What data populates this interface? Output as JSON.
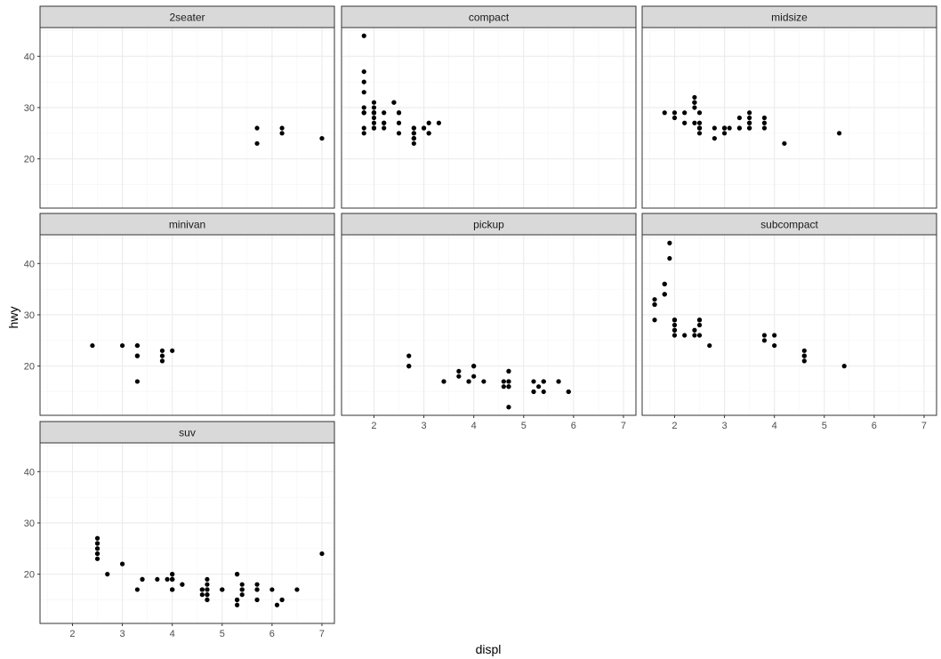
{
  "chart_data": {
    "type": "scatter",
    "layout": "facet_wrap",
    "xlabel": "displ",
    "ylabel": "hwy",
    "xlim": [
      1.35,
      7.25
    ],
    "ylim": [
      10.4,
      45.6
    ],
    "xticks": [
      2,
      3,
      4,
      5,
      6,
      7
    ],
    "yticks": [
      20,
      30,
      40
    ],
    "grid": true,
    "colors": {
      "strip_fill": "#d9d9d9",
      "strip_border": "#333333",
      "grid_major": "#ebebeb",
      "grid_minor": "#f5f5f5",
      "point": "#000000"
    },
    "facets": [
      {
        "name": "2seater",
        "points": [
          [
            5.7,
            26
          ],
          [
            5.7,
            23
          ],
          [
            6.2,
            26
          ],
          [
            6.2,
            25
          ],
          [
            7.0,
            24
          ]
        ]
      },
      {
        "name": "compact",
        "points": [
          [
            1.8,
            29
          ],
          [
            1.8,
            29
          ],
          [
            2.0,
            31
          ],
          [
            2.0,
            30
          ],
          [
            2.8,
            26
          ],
          [
            2.8,
            26
          ],
          [
            3.1,
            27
          ],
          [
            1.8,
            26
          ],
          [
            1.8,
            25
          ],
          [
            2.0,
            28
          ],
          [
            2.0,
            29
          ],
          [
            2.8,
            25
          ],
          [
            2.8,
            25
          ],
          [
            3.1,
            25
          ],
          [
            3.1,
            25
          ],
          [
            2.2,
            27
          ],
          [
            2.2,
            29
          ],
          [
            2.4,
            31
          ],
          [
            2.4,
            31
          ],
          [
            3.0,
            26
          ],
          [
            3.0,
            26
          ],
          [
            3.3,
            27
          ],
          [
            1.8,
            37
          ],
          [
            1.8,
            35
          ],
          [
            1.8,
            33
          ],
          [
            1.8,
            29
          ],
          [
            1.8,
            30
          ],
          [
            1.8,
            44
          ],
          [
            2.0,
            29
          ],
          [
            2.0,
            26
          ],
          [
            2.0,
            29
          ],
          [
            2.0,
            29
          ],
          [
            2.0,
            27
          ],
          [
            2.5,
            29
          ],
          [
            2.5,
            29
          ],
          [
            2.8,
            24
          ],
          [
            2.8,
            24
          ],
          [
            2.8,
            23
          ],
          [
            2.8,
            24
          ],
          [
            2.0,
            29
          ],
          [
            2.0,
            26
          ],
          [
            2.0,
            26
          ],
          [
            2.5,
            27
          ],
          [
            2.5,
            25
          ],
          [
            2.2,
            26
          ],
          [
            2.2,
            27
          ]
        ]
      },
      {
        "name": "midsize",
        "points": [
          [
            2.8,
            26
          ],
          [
            3.1,
            26
          ],
          [
            4.2,
            23
          ],
          [
            2.4,
            27
          ],
          [
            2.4,
            30
          ],
          [
            2.5,
            26
          ],
          [
            2.5,
            29
          ],
          [
            3.5,
            26
          ],
          [
            3.5,
            29
          ],
          [
            3.0,
            26
          ],
          [
            3.0,
            26
          ],
          [
            3.3,
            28
          ],
          [
            3.8,
            26
          ],
          [
            3.8,
            27
          ],
          [
            3.8,
            28
          ],
          [
            2.4,
            31
          ],
          [
            2.4,
            32
          ],
          [
            2.5,
            27
          ],
          [
            2.5,
            26
          ],
          [
            2.5,
            26
          ],
          [
            2.5,
            26
          ],
          [
            3.3,
            26
          ],
          [
            3.3,
            26
          ],
          [
            2.5,
            25
          ],
          [
            3.5,
            27
          ],
          [
            3.5,
            26
          ],
          [
            1.8,
            29
          ],
          [
            2.0,
            29
          ],
          [
            2.0,
            28
          ],
          [
            2.2,
            27
          ],
          [
            2.2,
            29
          ],
          [
            2.4,
            31
          ],
          [
            2.4,
            31
          ],
          [
            3.0,
            26
          ],
          [
            3.0,
            25
          ],
          [
            3.5,
            28
          ],
          [
            3.5,
            27
          ],
          [
            5.3,
            25
          ],
          [
            2.8,
            24
          ]
        ]
      },
      {
        "name": "minivan",
        "points": [
          [
            2.4,
            24
          ],
          [
            3.0,
            24
          ],
          [
            3.3,
            22
          ],
          [
            3.3,
            24
          ],
          [
            3.3,
            24
          ],
          [
            3.3,
            22
          ],
          [
            3.3,
            17
          ],
          [
            3.8,
            22
          ],
          [
            3.8,
            21
          ],
          [
            3.8,
            23
          ],
          [
            4.0,
            23
          ]
        ]
      },
      {
        "name": "pickup",
        "points": [
          [
            3.7,
            19
          ],
          [
            3.7,
            18
          ],
          [
            3.9,
            17
          ],
          [
            3.9,
            17
          ],
          [
            4.7,
            19
          ],
          [
            4.7,
            19
          ],
          [
            4.7,
            12
          ],
          [
            5.2,
            17
          ],
          [
            5.2,
            15
          ],
          [
            5.7,
            17
          ],
          [
            5.9,
            15
          ],
          [
            4.7,
            17
          ],
          [
            4.7,
            16
          ],
          [
            4.7,
            17
          ],
          [
            5.2,
            15
          ],
          [
            5.7,
            17
          ],
          [
            5.9,
            15
          ],
          [
            2.7,
            20
          ],
          [
            2.7,
            22
          ],
          [
            2.7,
            20
          ],
          [
            3.4,
            17
          ],
          [
            3.4,
            17
          ],
          [
            4.0,
            20
          ],
          [
            4.0,
            18
          ],
          [
            4.0,
            20
          ],
          [
            4.2,
            17
          ],
          [
            4.6,
            17
          ],
          [
            4.6,
            16
          ],
          [
            5.4,
            17
          ],
          [
            5.4,
            15
          ],
          [
            5.3,
            16
          ],
          [
            4.7,
            16
          ],
          [
            5.4,
            17
          ]
        ]
      },
      {
        "name": "subcompact",
        "points": [
          [
            3.8,
            26
          ],
          [
            3.8,
            25
          ],
          [
            4.0,
            26
          ],
          [
            4.0,
            24
          ],
          [
            4.6,
            21
          ],
          [
            4.6,
            22
          ],
          [
            4.6,
            23
          ],
          [
            4.6,
            22
          ],
          [
            5.4,
            20
          ],
          [
            1.6,
            33
          ],
          [
            1.6,
            32
          ],
          [
            1.6,
            32
          ],
          [
            1.6,
            29
          ],
          [
            1.6,
            32
          ],
          [
            1.8,
            34
          ],
          [
            1.8,
            36
          ],
          [
            1.8,
            36
          ],
          [
            2.0,
            29
          ],
          [
            2.4,
            26
          ],
          [
            2.4,
            27
          ],
          [
            2.5,
            26
          ],
          [
            2.5,
            28
          ],
          [
            1.9,
            44
          ],
          [
            2.0,
            29
          ],
          [
            2.0,
            26
          ],
          [
            2.0,
            29
          ],
          [
            2.0,
            28
          ],
          [
            2.5,
            29
          ],
          [
            2.5,
            29
          ],
          [
            2.7,
            24
          ],
          [
            1.9,
            41
          ],
          [
            2.2,
            26
          ],
          [
            1.8,
            34
          ],
          [
            2.0,
            27
          ],
          [
            2.0,
            27
          ]
        ]
      },
      {
        "name": "suv",
        "points": [
          [
            5.3,
            20
          ],
          [
            5.3,
            15
          ],
          [
            5.3,
            20
          ],
          [
            5.7,
            17
          ],
          [
            6.0,
            17
          ],
          [
            5.7,
            17
          ],
          [
            5.7,
            15
          ],
          [
            6.2,
            15
          ],
          [
            6.2,
            15
          ],
          [
            7.0,
            24
          ],
          [
            5.3,
            15
          ],
          [
            5.3,
            14
          ],
          [
            5.7,
            15
          ],
          [
            6.5,
            17
          ],
          [
            4.0,
            17
          ],
          [
            4.0,
            17
          ],
          [
            4.6,
            16
          ],
          [
            5.0,
            17
          ],
          [
            4.2,
            18
          ],
          [
            4.7,
            17
          ],
          [
            4.7,
            16
          ],
          [
            4.7,
            19
          ],
          [
            5.3,
            15
          ],
          [
            4.6,
            17
          ],
          [
            5.4,
            17
          ],
          [
            4.0,
            19
          ],
          [
            4.0,
            19
          ],
          [
            4.0,
            20
          ],
          [
            4.7,
            18
          ],
          [
            4.7,
            16
          ],
          [
            4.7,
            15
          ],
          [
            3.3,
            17
          ],
          [
            3.7,
            19
          ],
          [
            4.0,
            19
          ],
          [
            4.0,
            19
          ],
          [
            4.6,
            17
          ],
          [
            5.0,
            17
          ],
          [
            4.2,
            18
          ],
          [
            2.5,
            25
          ],
          [
            2.5,
            24
          ],
          [
            2.5,
            24
          ],
          [
            2.5,
            27
          ],
          [
            2.5,
            26
          ],
          [
            2.5,
            23
          ],
          [
            2.7,
            20
          ],
          [
            3.4,
            19
          ],
          [
            3.4,
            19
          ],
          [
            4.0,
            17
          ],
          [
            4.7,
            17
          ],
          [
            5.7,
            18
          ],
          [
            6.1,
            14
          ],
          [
            5.4,
            17
          ],
          [
            5.4,
            18
          ],
          [
            5.4,
            16
          ],
          [
            3.0,
            22
          ],
          [
            3.9,
            19
          ],
          [
            2.5,
            26
          ],
          [
            2.5,
            25
          ],
          [
            4.7,
            15
          ],
          [
            4.0,
            20
          ]
        ]
      }
    ]
  }
}
